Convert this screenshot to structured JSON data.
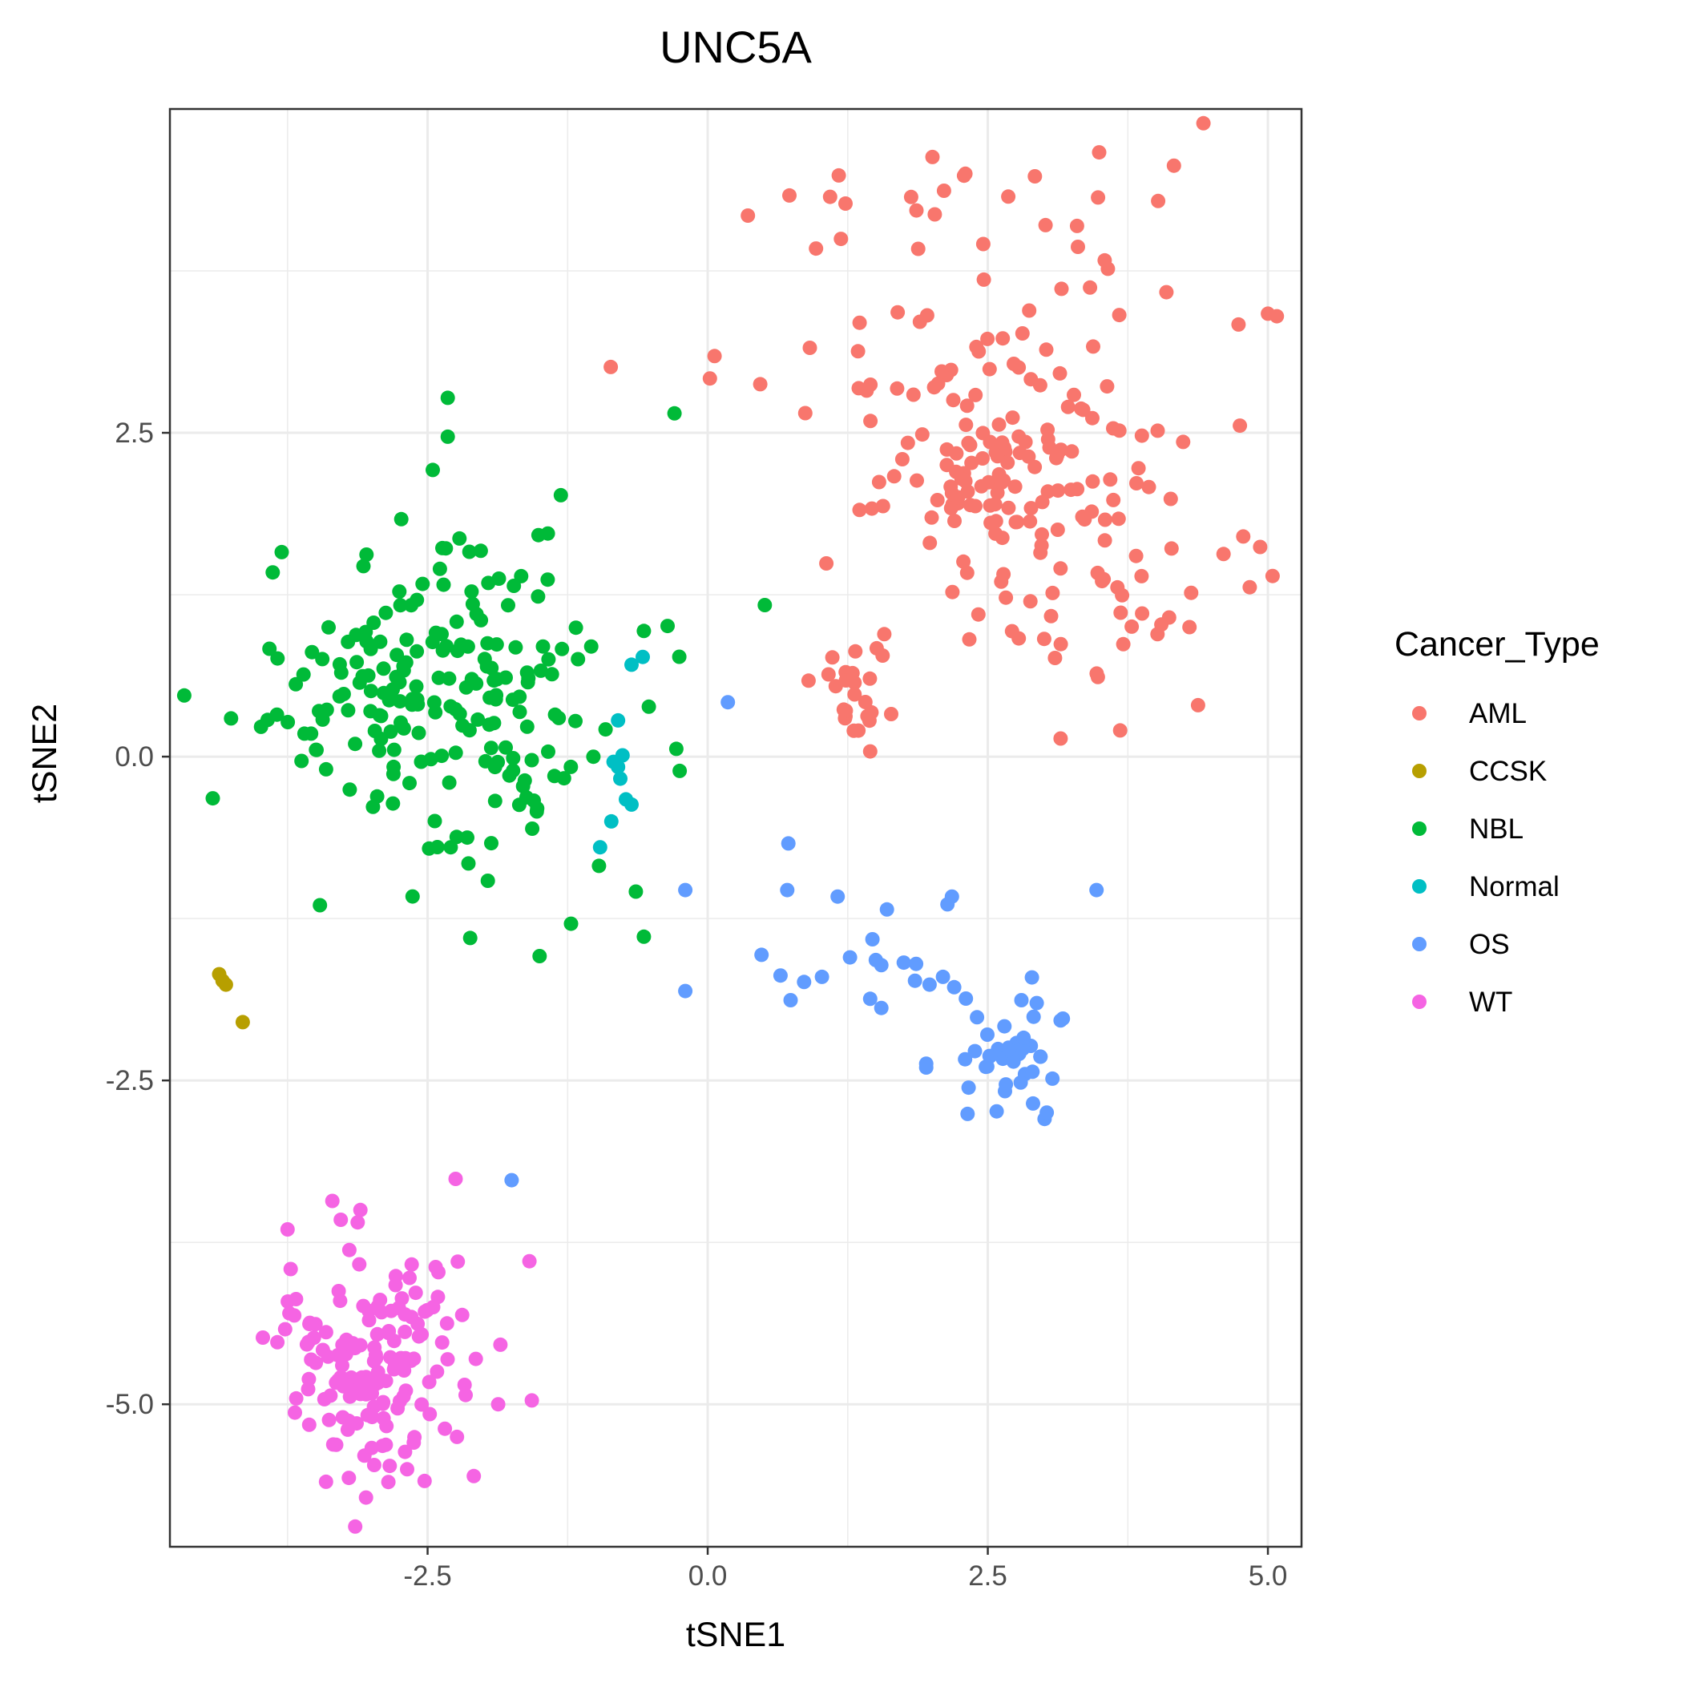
{
  "chart_data": {
    "type": "scatter",
    "title": "UNC5A",
    "xlabel": "tSNE1",
    "ylabel": "tSNE2",
    "xlim": [
      -4.8,
      5.3
    ],
    "ylim": [
      -6.1,
      5.0
    ],
    "x_ticks": [
      -2.5,
      0.0,
      2.5,
      5.0
    ],
    "x_tick_labels": [
      "-2.5",
      "0.0",
      "2.5",
      "5.0"
    ],
    "y_ticks": [
      -5.0,
      -2.5,
      0.0,
      2.5
    ],
    "y_tick_labels": [
      "-5.0",
      "-2.5",
      "0.0",
      "2.5"
    ],
    "grid": true,
    "legend_title": "Cancer_Type",
    "legend_position": "right",
    "colors": {
      "AML": "#F8766D",
      "CCSK": "#B79F00",
      "NBL": "#00BA38",
      "Normal": "#00BFC4",
      "OS": "#619CFF",
      "WT": "#F564E3"
    },
    "series": [
      {
        "name": "AML",
        "clusters": [
          {
            "cx": 2.6,
            "cy": 3.1,
            "sx": 1.0,
            "sy": 1.0,
            "n": 110
          },
          {
            "cx": 2.5,
            "cy": 2.05,
            "sx": 0.35,
            "sy": 0.3,
            "n": 60
          },
          {
            "cx": 3.4,
            "cy": 1.5,
            "sx": 0.7,
            "sy": 0.55,
            "n": 55
          },
          {
            "cx": 1.4,
            "cy": 0.45,
            "sx": 0.2,
            "sy": 0.3,
            "n": 25
          }
        ],
        "points": [
          [
            1.23,
            4.27
          ],
          [
            2.3,
            4.5
          ],
          [
            2.92,
            4.48
          ],
          [
            4.02,
            4.29
          ],
          [
            5.0,
            3.42
          ],
          [
            5.08,
            3.4
          ],
          [
            0.02,
            2.92
          ],
          [
            1.53,
            2.12
          ],
          [
            4.78,
            1.7
          ],
          [
            3.15,
            0.14
          ],
          [
            1.45,
            0.04
          ],
          [
            4.3,
            1.0
          ]
        ]
      },
      {
        "name": "CCSK",
        "points": [
          [
            -4.36,
            -1.68
          ],
          [
            -4.33,
            -1.73
          ],
          [
            -4.3,
            -1.76
          ],
          [
            -4.15,
            -2.05
          ]
        ]
      },
      {
        "name": "NBL",
        "clusters": [
          {
            "cx": -2.3,
            "cy": 0.45,
            "sx": 0.85,
            "sy": 0.65,
            "n": 210
          }
        ],
        "points": [
          [
            -2.32,
            2.77
          ],
          [
            -2.32,
            2.47
          ],
          [
            -1.51,
            1.71
          ],
          [
            0.51,
            1.17
          ],
          [
            -1.22,
            -1.29
          ],
          [
            -1.5,
            -1.54
          ],
          [
            -2.12,
            -1.4
          ],
          [
            -0.57,
            -1.39
          ],
          [
            -1.04,
            0.85
          ],
          [
            -0.57,
            0.97
          ],
          [
            -0.28,
            0.06
          ],
          [
            -0.25,
            -0.11
          ]
        ]
      },
      {
        "name": "Normal",
        "points": [
          [
            -0.58,
            0.77
          ],
          [
            -0.68,
            0.71
          ],
          [
            -0.8,
            0.28
          ],
          [
            -0.84,
            -0.04
          ],
          [
            -0.8,
            -0.08
          ],
          [
            -0.78,
            -0.17
          ],
          [
            -0.73,
            -0.33
          ],
          [
            -0.68,
            -0.37
          ],
          [
            -0.86,
            -0.5
          ],
          [
            -0.96,
            -0.7
          ],
          [
            -0.76,
            0.01
          ]
        ]
      },
      {
        "name": "OS",
        "clusters": [
          {
            "cx": 2.68,
            "cy": -2.28,
            "sx": 0.22,
            "sy": 0.2,
            "n": 40
          }
        ],
        "points": [
          [
            -0.2,
            -1.03
          ],
          [
            0.18,
            0.42
          ],
          [
            0.72,
            -0.67
          ],
          [
            0.71,
            -1.03
          ],
          [
            1.16,
            -1.08
          ],
          [
            1.6,
            -1.18
          ],
          [
            2.18,
            -1.08
          ],
          [
            2.14,
            -1.14
          ],
          [
            3.47,
            -1.03
          ],
          [
            0.48,
            -1.53
          ],
          [
            0.65,
            -1.69
          ],
          [
            0.74,
            -1.88
          ],
          [
            0.86,
            -1.74
          ],
          [
            1.02,
            -1.7
          ],
          [
            1.27,
            -1.55
          ],
          [
            1.47,
            -1.41
          ],
          [
            1.5,
            -1.57
          ],
          [
            1.55,
            -1.61
          ],
          [
            1.75,
            -1.59
          ],
          [
            1.86,
            -1.6
          ],
          [
            1.45,
            -1.87
          ],
          [
            1.55,
            -1.94
          ],
          [
            1.85,
            -1.73
          ],
          [
            1.98,
            -1.76
          ],
          [
            2.1,
            -1.7
          ],
          [
            2.2,
            -1.78
          ],
          [
            -0.2,
            -1.81
          ],
          [
            -1.75,
            -3.27
          ],
          [
            1.95,
            -2.37
          ],
          [
            1.95,
            -2.4
          ],
          [
            2.8,
            -1.88
          ]
        ]
      },
      {
        "name": "WT",
        "clusters": [
          {
            "cx": -3.0,
            "cy": -4.75,
            "sx": 0.45,
            "sy": 0.45,
            "n": 150
          }
        ],
        "points": [
          [
            -2.25,
            -3.26
          ],
          [
            -3.35,
            -3.43
          ],
          [
            -3.1,
            -3.5
          ],
          [
            -3.75,
            -3.65
          ],
          [
            -2.45,
            -4.25
          ],
          [
            -1.85,
            -4.54
          ],
          [
            -2.07,
            -4.65
          ],
          [
            -1.57,
            -4.97
          ],
          [
            -1.87,
            -5.0
          ],
          [
            -2.17,
            -4.85
          ],
          [
            -3.05,
            -5.72
          ],
          [
            -2.85,
            -5.6
          ]
        ]
      }
    ]
  }
}
